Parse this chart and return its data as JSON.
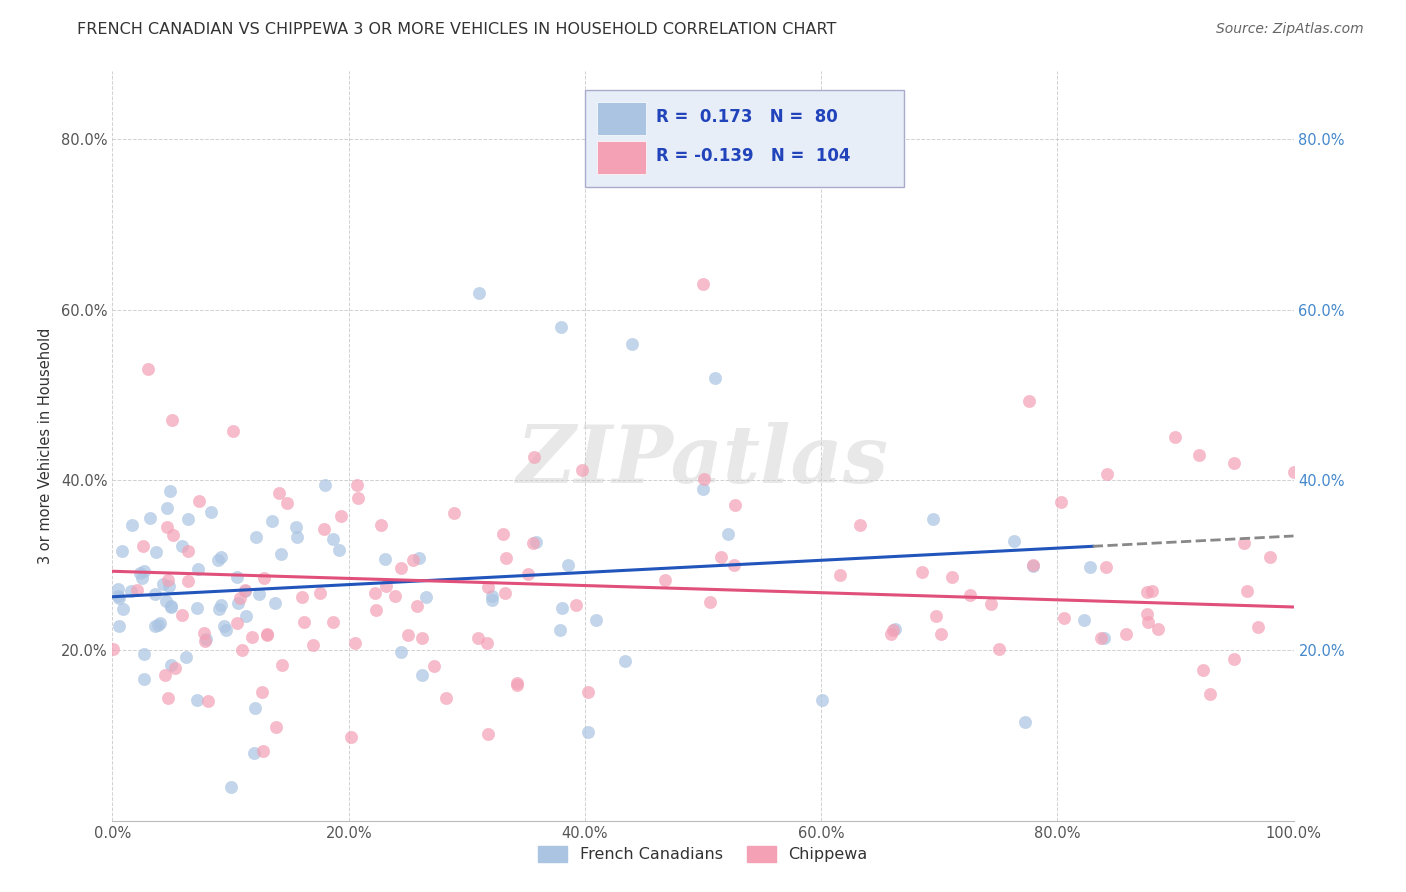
{
  "title": "FRENCH CANADIAN VS CHIPPEWA 3 OR MORE VEHICLES IN HOUSEHOLD CORRELATION CHART",
  "source": "Source: ZipAtlas.com",
  "ylabel": "3 or more Vehicles in Household",
  "xlim": [
    0.0,
    1.0
  ],
  "ylim": [
    0.0,
    0.88
  ],
  "xtick_labels": [
    "0.0%",
    "20.0%",
    "40.0%",
    "60.0%",
    "80.0%",
    "100.0%"
  ],
  "xtick_vals": [
    0.0,
    0.2,
    0.4,
    0.6,
    0.8,
    1.0
  ],
  "ytick_labels": [
    "20.0%",
    "40.0%",
    "60.0%",
    "80.0%"
  ],
  "ytick_vals": [
    0.2,
    0.4,
    0.6,
    0.8
  ],
  "french_R": 0.173,
  "french_N": 80,
  "chippewa_R": -0.139,
  "chippewa_N": 104,
  "french_color": "#aac4e2",
  "chippewa_color": "#f4a0b5",
  "french_line_color": "#2255bb",
  "chippewa_line_color": "#e0507a",
  "watermark": "ZIPatlas",
  "background_color": "#ffffff",
  "grid_color": "#cccccc",
  "legend_box_color": "#e8eef8",
  "legend_border_color": "#aaaacc",
  "legend_text_color": "#2244bb",
  "source_color": "#666666",
  "title_color": "#333333",
  "ylabel_color": "#333333",
  "right_tick_color": "#4488cc",
  "bottom_legend_labels": [
    "French Canadians",
    "Chippewa"
  ]
}
